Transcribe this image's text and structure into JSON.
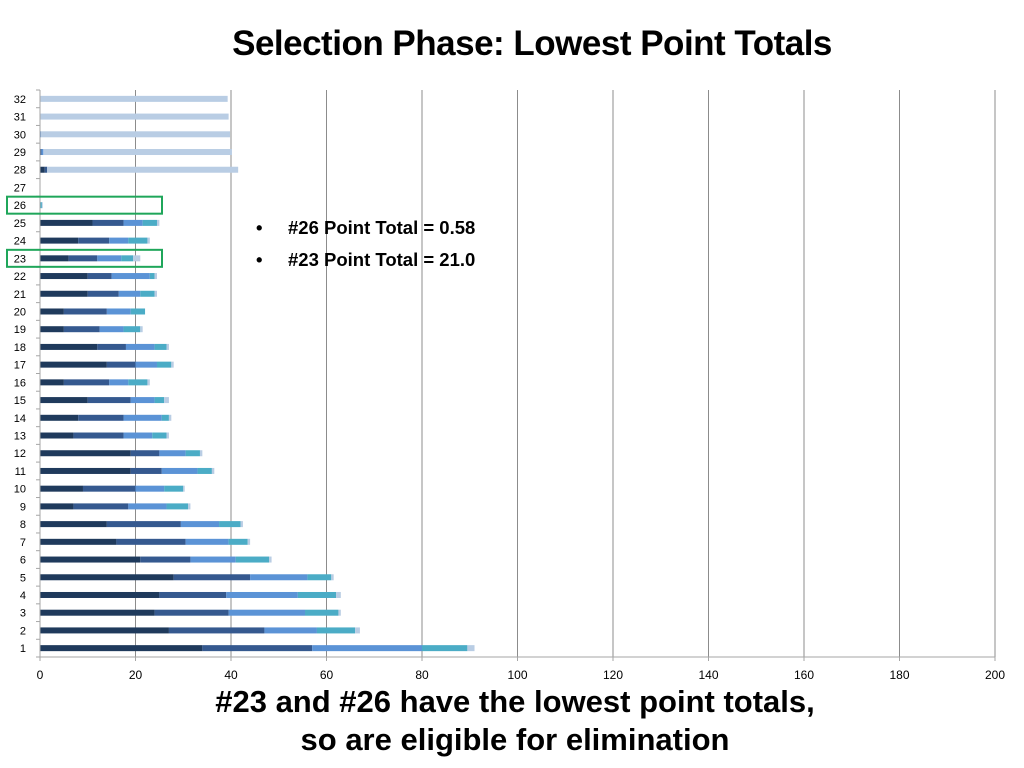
{
  "slide": {
    "title": "Selection Phase: Lowest Point Totals",
    "bullets": [
      "#26 Point Total = 0.58",
      "#23 Point Total = 21.0"
    ],
    "caption_line1": "#23 and #26 have the lowest point totals,",
    "caption_line2": "so are eligible for elimination"
  },
  "chart_data": {
    "type": "bar",
    "orientation": "horizontal",
    "stacked": true,
    "categories": [
      "1",
      "2",
      "3",
      "4",
      "5",
      "6",
      "7",
      "8",
      "9",
      "10",
      "11",
      "12",
      "13",
      "14",
      "15",
      "16",
      "17",
      "18",
      "19",
      "20",
      "21",
      "22",
      "23",
      "24",
      "25",
      "26",
      "27",
      "28",
      "29",
      "30",
      "31",
      "32"
    ],
    "xlim": [
      0,
      200
    ],
    "xticks": [
      0,
      20,
      40,
      60,
      80,
      100,
      120,
      140,
      160,
      180,
      200
    ],
    "grid": true,
    "series": [
      {
        "color": "#1f3a5c",
        "values": [
          34,
          27,
          24,
          25,
          28,
          21,
          16,
          14,
          7,
          9,
          19,
          19,
          7,
          8,
          10,
          5,
          14,
          12,
          5,
          5,
          10,
          10,
          6,
          8,
          11,
          0,
          0,
          1,
          0,
          0,
          0,
          0
        ]
      },
      {
        "color": "#35598f",
        "values": [
          23,
          20,
          15.5,
          14,
          16,
          10.5,
          14.5,
          15.5,
          11.5,
          11,
          6.5,
          6,
          10.5,
          9.5,
          9,
          9.5,
          6,
          6,
          7.5,
          9,
          6.5,
          5,
          6,
          6.5,
          6.5,
          0,
          0,
          0.5,
          0.3,
          0,
          0,
          0
        ]
      },
      {
        "color": "#5b93d6",
        "values": [
          23,
          11,
          16,
          15,
          12,
          9.5,
          9,
          8,
          8,
          6,
          7.5,
          5.5,
          6,
          8,
          5,
          4,
          4.5,
          6,
          5,
          5,
          4.5,
          8,
          5,
          4,
          4,
          0,
          0,
          0,
          0.4,
          0.2,
          0,
          0
        ]
      },
      {
        "color": "#4bacc6",
        "values": [
          9.5,
          8,
          7,
          8,
          5,
          7,
          4,
          4.5,
          4.5,
          4,
          3,
          3,
          3,
          1.5,
          2,
          4,
          3,
          2.5,
          3.5,
          3,
          3,
          1,
          2.5,
          4,
          3,
          0.4,
          0,
          0,
          0,
          0,
          0,
          0
        ]
      },
      {
        "color": "#b9cde4",
        "values": [
          1.5,
          1,
          0.5,
          1,
          0.5,
          0.5,
          0.5,
          0.5,
          0.5,
          0.3,
          0.5,
          0.5,
          0.5,
          0.5,
          1,
          0.5,
          0.5,
          0.5,
          0.5,
          0,
          0.5,
          0.5,
          1.5,
          0.5,
          0.5,
          0.18,
          0,
          40,
          39.5,
          39.6,
          39.5,
          39.3
        ]
      }
    ]
  },
  "highlight_rows": [
    "26",
    "23"
  ],
  "highlight_color": "#1fa65a",
  "gridline_color": "#8c8c8c",
  "axis_color": "#a6a6a6"
}
